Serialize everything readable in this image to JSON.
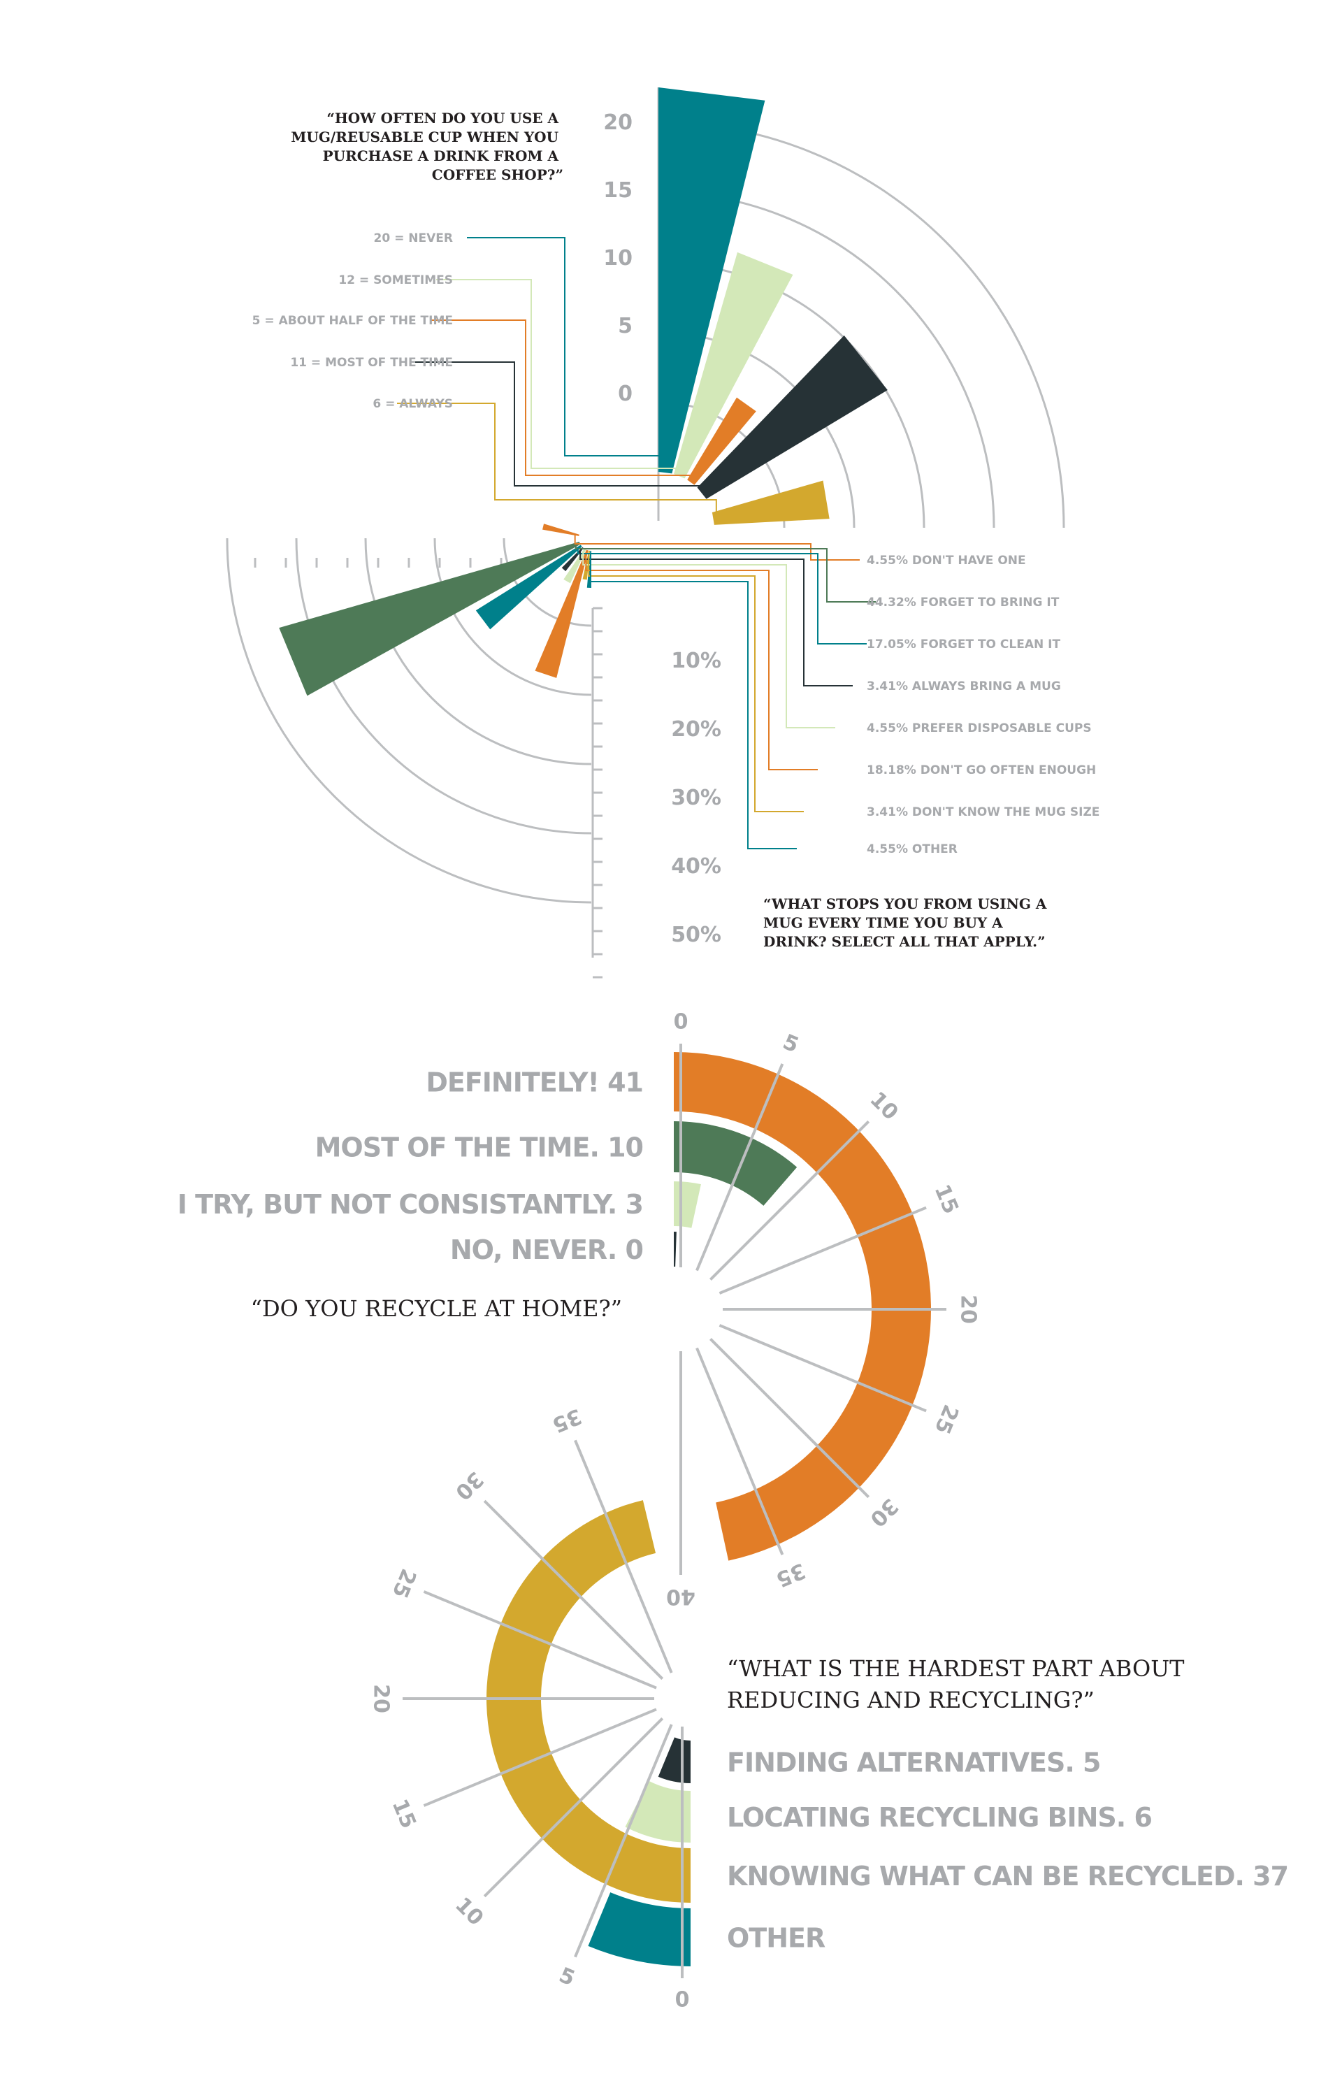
{
  "colors": {
    "teal": "#00808b",
    "light_green": "#d3e8b8",
    "orange": "#e27d27",
    "dark": "#263236",
    "mustard": "#d3a82e",
    "forest": "#4e7a57",
    "grid": "#bcbec0",
    "label": "#a7a9ac"
  },
  "chart_data": [
    {
      "type": "radial-bar",
      "title": "“HOW OFTEN DO YOU USE A MUG/REUSABLE CUP WHEN YOU PURCHASE A DRINK FROM A COFFEE SHOP?”",
      "title_lines": [
        "“HOW OFTEN DO YOU USE A",
        "MUG/REUSABLE CUP WHEN YOU",
        "PURCHASE A DRINK FROM A",
        "COFFEE SHOP?”"
      ],
      "ticks": [
        "20",
        "15",
        "10",
        "5",
        "0"
      ],
      "categories": [
        {
          "label": "20 = NEVER",
          "value": 20,
          "color": "#00808b"
        },
        {
          "label": "12 = SOMETIMES",
          "value": 12,
          "color": "#d3e8b8"
        },
        {
          "label": "5 = ABOUT HALF OF THE TIME",
          "value": 5,
          "color": "#e27d27"
        },
        {
          "label": "11 = MOST OF THE TIME",
          "value": 11,
          "color": "#263236"
        },
        {
          "label": "6 = ALWAYS",
          "value": 6,
          "color": "#d3a82e"
        }
      ]
    },
    {
      "type": "radial-bar",
      "title": "“WHAT STOPS YOU FROM USING A MUG EVERY TIME YOU BUY A DRINK? SELECT ALL THAT APPLY.”",
      "title_lines": [
        "“WHAT STOPS YOU FROM USING A",
        "MUG EVERY TIME YOU BUY A",
        "DRINK? SELECT ALL THAT APPLY.”"
      ],
      "ticks": [
        "10%",
        "20%",
        "30%",
        "40%",
        "50%"
      ],
      "categories": [
        {
          "label": "4.55% DON'T HAVE ONE",
          "value": 4.55,
          "color": "#e27d27"
        },
        {
          "label": "44.32% FORGET TO BRING IT",
          "value": 44.32,
          "color": "#4e7a57"
        },
        {
          "label": "17.05% FORGET TO CLEAN IT",
          "value": 17.05,
          "color": "#00808b"
        },
        {
          "label": "3.41% ALWAYS BRING A MUG",
          "value": 3.41,
          "color": "#263236"
        },
        {
          "label": "4.55% PREFER DISPOSABLE CUPS",
          "value": 4.55,
          "color": "#d3e8b8"
        },
        {
          "label": "18.18% DON'T GO OFTEN ENOUGH",
          "value": 18.18,
          "color": "#e27d27"
        },
        {
          "label": "3.41% DON'T KNOW THE MUG SIZE",
          "value": 3.41,
          "color": "#d3a82e"
        },
        {
          "label": "4.55% OTHER",
          "value": 4.55,
          "color": "#00808b"
        }
      ]
    },
    {
      "type": "radial-bar",
      "title": "“DO YOU RECYCLE AT HOME?”",
      "ticks": [
        "0",
        "5",
        "10",
        "15",
        "20",
        "25",
        "30",
        "35",
        "40"
      ],
      "categories": [
        {
          "label": "DEFINITELY! 41",
          "value": 41,
          "color": "#e27d27"
        },
        {
          "label": "MOST OF THE TIME. 10",
          "value": 10,
          "color": "#4e7a57"
        },
        {
          "label": "I TRY, BUT NOT CONSISTANTLY. 3",
          "value": 3,
          "color": "#d3e8b8"
        },
        {
          "label": "NO, NEVER. 0",
          "value": 0,
          "color": "#263236"
        }
      ]
    },
    {
      "type": "radial-bar",
      "title": "“WHAT IS THE HARDEST PART ABOUT REDUCING AND RECYCLING?”",
      "title_lines": [
        "“WHAT IS THE HARDEST PART ABOUT",
        "REDUCING AND RECYCLING?”"
      ],
      "ticks": [
        "0",
        "5",
        "10",
        "15",
        "20",
        "25",
        "30",
        "35"
      ],
      "categories": [
        {
          "label": "FINDING ALTERNATIVES. 5",
          "value": 5,
          "color": "#263236"
        },
        {
          "label": "LOCATING RECYCLING BINS. 6",
          "value": 6,
          "color": "#d3e8b8"
        },
        {
          "label": "KNOWING WHAT CAN BE RECYCLED. 37",
          "value": 37,
          "color": "#d3a82e"
        },
        {
          "label": "OTHER",
          "value": 5,
          "color": "#00808b"
        }
      ]
    }
  ]
}
